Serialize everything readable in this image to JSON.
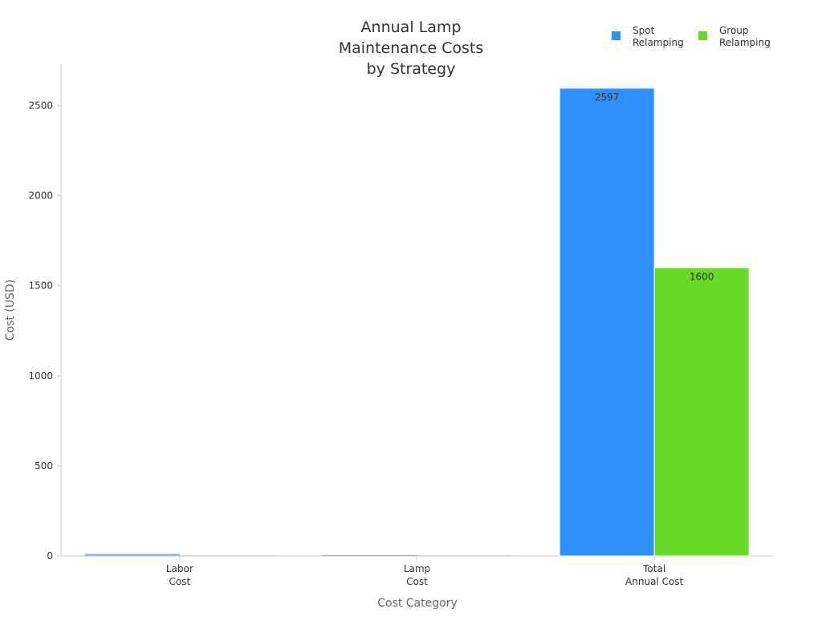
{
  "chart_data": {
    "type": "bar",
    "title": "Annual Lamp Maintenance Costs by Strategy",
    "title_lines": [
      "Annual Lamp",
      "Maintenance Costs",
      "by Strategy"
    ],
    "xlabel": "Cost Category",
    "ylabel": "Cost (USD)",
    "categories": [
      "Labor Cost",
      "Lamp Cost",
      "Total Annual Cost"
    ],
    "category_lines": [
      [
        "Labor",
        "Cost"
      ],
      [
        "Lamp",
        "Cost"
      ],
      [
        "Total",
        "Annual Cost"
      ]
    ],
    "series": [
      {
        "name": "Spot Relamping",
        "name_lines": [
          "Spot",
          "Relamping"
        ],
        "color": "#2e90fa",
        "values": [
          12,
          5,
          2597
        ]
      },
      {
        "name": "Group Relamping",
        "name_lines": [
          "Group",
          "Relamping"
        ],
        "color": "#66d929",
        "values": [
          3,
          3,
          1600
        ]
      }
    ],
    "data_labels": [
      {
        "series": 0,
        "category": 2,
        "text": "2597"
      },
      {
        "series": 1,
        "category": 2,
        "text": "1600"
      }
    ],
    "ylim": [
      0,
      2730
    ],
    "yticks": [
      0,
      500,
      1000,
      1500,
      2000,
      2500
    ],
    "grid": false,
    "legend_position": "top-right"
  }
}
